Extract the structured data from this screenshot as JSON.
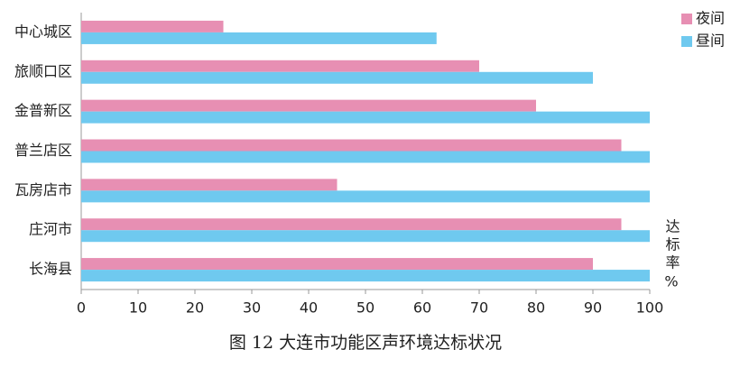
{
  "chart_data": {
    "type": "hbar",
    "title": "图 12  大连市功能区声环境达标状况",
    "x_label": "达标率%",
    "categories": [
      "中心城区",
      "旅顺口区",
      "金普新区",
      "普兰店区",
      "瓦房店市",
      "庄河市",
      "长海县"
    ],
    "series": [
      {
        "name": "夜间",
        "color": "#e78fb3",
        "values": [
          25,
          70,
          80,
          95,
          45,
          95,
          90
        ]
      },
      {
        "name": "昼间",
        "color": "#6fc9ef",
        "values": [
          62.5,
          90,
          100,
          100,
          100,
          100,
          100
        ]
      }
    ],
    "xlim": [
      0,
      100
    ],
    "xticks": [
      0,
      10,
      20,
      30,
      40,
      50,
      60,
      70,
      80,
      90,
      100
    ],
    "legend": "top-right"
  }
}
